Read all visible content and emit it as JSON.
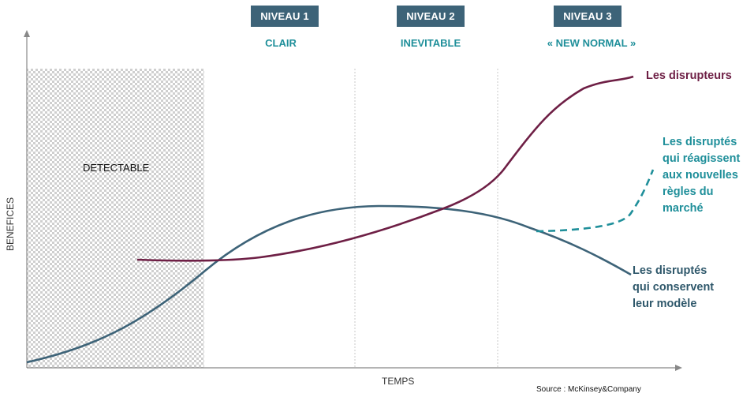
{
  "levels": [
    {
      "title": "NIVEAU 1",
      "subtitle": "CLAIR"
    },
    {
      "title": "NIVEAU 2",
      "subtitle": "INEVITABLE"
    },
    {
      "title": "NIVEAU 3",
      "subtitle": "« NEW NORMAL »"
    }
  ],
  "phase": {
    "label": "DETECTABLE"
  },
  "axes": {
    "x_label": "TEMPS",
    "y_label": "BENEFICES"
  },
  "series": {
    "disrupteurs": {
      "label": "Les disrupteurs",
      "color": "#6e1f45"
    },
    "reacting": {
      "label_lines": [
        "Les disruptés",
        "qui réagissent",
        "aux nouvelles",
        "règles du",
        "marché"
      ],
      "color": "#1f8f9a"
    },
    "keeping": {
      "label_lines": [
        "Les disruptés",
        "qui conservent",
        "leur modèle"
      ],
      "color": "#3d6378"
    }
  },
  "source": "Source : McKinsey&Company",
  "colors": {
    "level_box": "#3d6378",
    "subtitle": "#1f8f9a",
    "axis": "#888888"
  }
}
